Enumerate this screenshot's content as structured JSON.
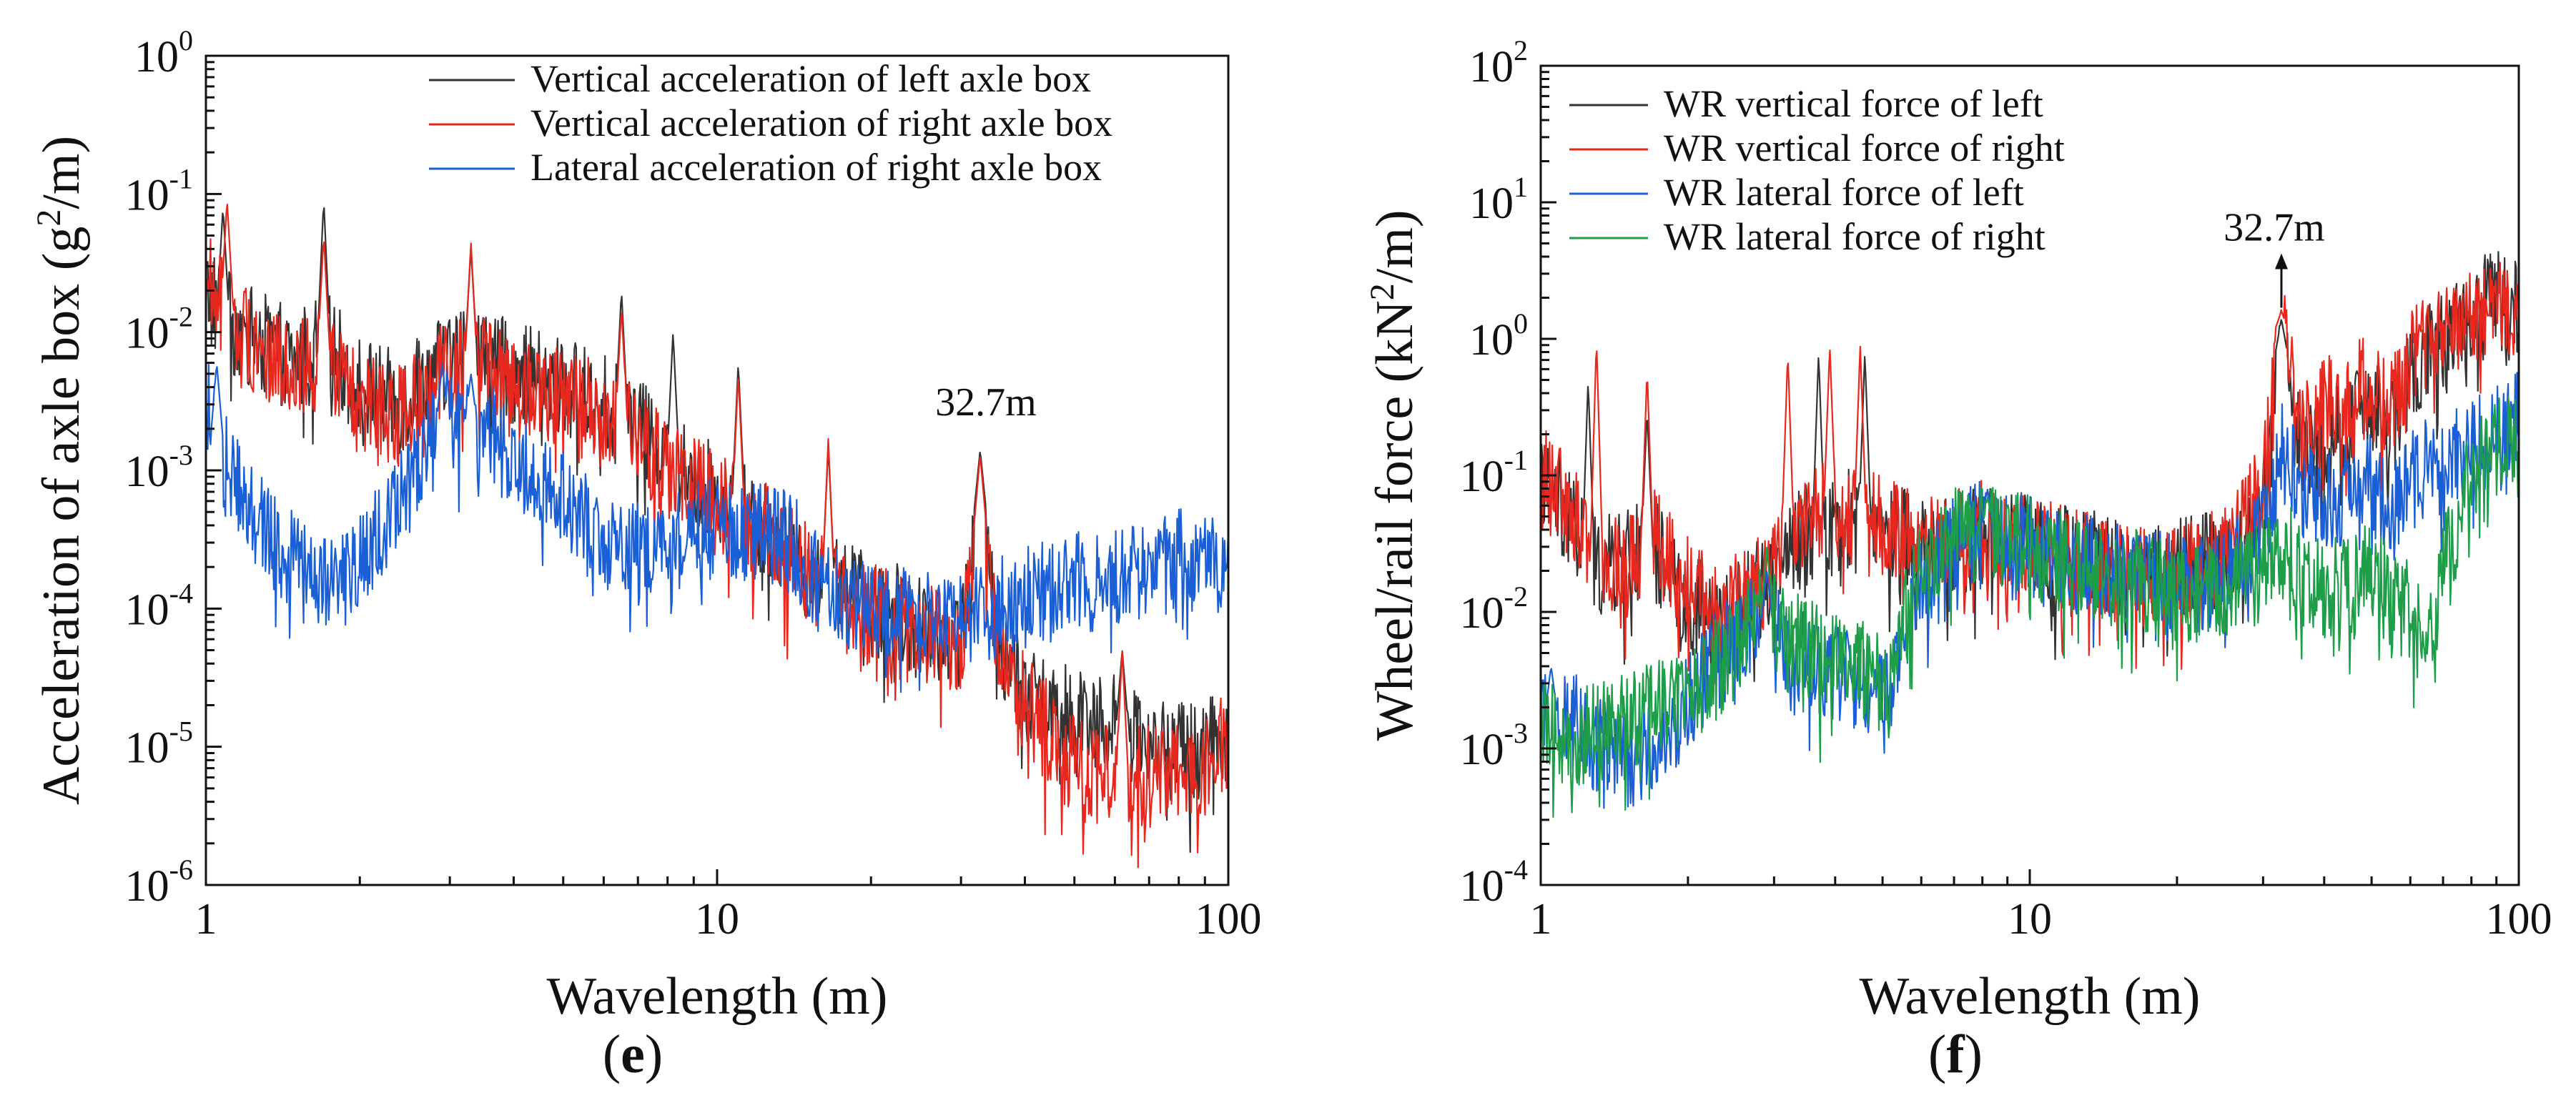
{
  "chart_data": [
    {
      "type": "line",
      "panel": "e",
      "panel_label": "e",
      "xlabel": "Wavelength (m)",
      "ylabel_pre": "Acceleration of axle box (g",
      "ylabel_sup": "2",
      "ylabel_post": "/m)",
      "xscale": "log",
      "yscale": "log",
      "xlim": [
        1,
        100
      ],
      "ylim": [
        1e-06,
        1
      ],
      "x_ticks": [
        {
          "label": "1"
        },
        {
          "label": "10"
        },
        {
          "label": "100"
        }
      ],
      "y_ticks": [
        {
          "base": "10",
          "exp": "0"
        },
        {
          "base": "10",
          "exp": "-1"
        },
        {
          "base": "10",
          "exp": "-2"
        },
        {
          "base": "10",
          "exp": "-3"
        },
        {
          "base": "10",
          "exp": "-4"
        },
        {
          "base": "10",
          "exp": "-5"
        },
        {
          "base": "10",
          "exp": "-6"
        }
      ],
      "legend_position": "top-right",
      "annotations": [
        {
          "text": "32.7m",
          "x": 32.7,
          "y": 0.0025
        }
      ],
      "series": [
        {
          "name": "Vertical acceleration of left axle box",
          "color": "#333333",
          "x": [
            1,
            1.1,
            1.3,
            1.5,
            1.7,
            2.0,
            2.4,
            2.9,
            3.3,
            4.0,
            5.0,
            6.0,
            7.0,
            8.0,
            9.5,
            11,
            13,
            15,
            17,
            20,
            25,
            30,
            32.7,
            36,
            40,
            45,
            50,
            60,
            70,
            80,
            90,
            100
          ],
          "values": [
            0.02,
            0.012,
            0.008,
            0.006,
            0.009,
            0.004,
            0.003,
            0.006,
            0.007,
            0.005,
            0.004,
            0.003,
            0.002,
            0.0012,
            0.0008,
            0.0006,
            0.00035,
            0.0002,
            0.00015,
            0.0001,
            8e-05,
            6e-05,
            0.0005,
            5e-05,
            2.5e-05,
            2e-05,
            1.8e-05,
            1.5e-05,
            1e-05,
            9e-06,
            1e-05,
            1.5e-05
          ],
          "peaks": [
            [
              1.08,
              0.08
            ],
            [
              1.7,
              0.09
            ],
            [
              3.3,
              0.04
            ],
            [
              6.5,
              0.02
            ],
            [
              8.2,
              0.01
            ],
            [
              11,
              0.006
            ],
            [
              16.5,
              0.0015
            ],
            [
              32.7,
              0.0014
            ],
            [
              62,
              5e-05
            ]
          ]
        },
        {
          "name": "Vertical acceleration of right axle box",
          "color": "#e8281e",
          "x": [
            1,
            1.1,
            1.3,
            1.5,
            1.7,
            2.0,
            2.4,
            2.9,
            3.3,
            4.0,
            5.0,
            6.0,
            7.0,
            8.0,
            9.5,
            11,
            13,
            15,
            17,
            20,
            25,
            30,
            32.7,
            36,
            40,
            45,
            50,
            60,
            70,
            80,
            90,
            100
          ],
          "values": [
            0.025,
            0.015,
            0.007,
            0.005,
            0.007,
            0.003,
            0.0025,
            0.005,
            0.006,
            0.004,
            0.0035,
            0.0025,
            0.0018,
            0.001,
            0.0007,
            0.0005,
            0.0003,
            0.00018,
            0.00013,
            9e-05,
            7e-05,
            5e-05,
            0.0004,
            4e-05,
            2e-05,
            1.2e-05,
            7e-06,
            6e-06,
            6e-06,
            6e-06,
            8e-06,
            1.2e-05
          ],
          "peaks": [
            [
              1.1,
              0.09
            ],
            [
              1.7,
              0.05
            ],
            [
              3.3,
              0.045
            ],
            [
              6.5,
              0.015
            ],
            [
              11,
              0.005
            ],
            [
              16.5,
              0.0017
            ],
            [
              32.7,
              0.0013
            ],
            [
              62,
              5e-05
            ]
          ]
        },
        {
          "name": "Lateral acceleration of right axle box",
          "color": "#1a5fd6",
          "x": [
            1,
            1.1,
            1.3,
            1.5,
            1.7,
            2.0,
            2.4,
            2.7,
            3.0,
            3.5,
            4.0,
            5.0,
            6.0,
            7.0,
            8.0,
            9.0,
            10,
            12,
            14,
            16,
            18,
            20,
            25,
            30,
            35,
            40,
            50,
            60,
            70,
            80,
            90,
            100
          ],
          "values": [
            0.003,
            0.001,
            0.0004,
            0.0002,
            0.00015,
            0.0002,
            0.0006,
            0.0015,
            0.0025,
            0.002,
            0.0012,
            0.0006,
            0.0003,
            0.00025,
            0.0003,
            0.00035,
            0.0004,
            0.00035,
            0.0003,
            0.00015,
            0.0001,
            9e-05,
            8e-05,
            9e-05,
            0.0001,
            0.00012,
            0.00015,
            0.00018,
            0.0002,
            0.00022,
            0.00025,
            0.0002
          ],
          "peaks": [
            [
              1.05,
              0.006
            ],
            [
              2.9,
              0.006
            ],
            [
              3.3,
              0.005
            ]
          ]
        }
      ]
    },
    {
      "type": "line",
      "panel": "f",
      "panel_label": "f",
      "xlabel": "Wavelength (m)",
      "ylabel_pre": "Wheel/rail force (kN",
      "ylabel_sup": "2",
      "ylabel_post": "/m)",
      "xscale": "log",
      "yscale": "log",
      "xlim": [
        1,
        100
      ],
      "ylim": [
        0.0001,
        100
      ],
      "x_ticks": [
        {
          "label": "1"
        },
        {
          "label": "10"
        },
        {
          "label": "100"
        }
      ],
      "y_ticks": [
        {
          "base": "10",
          "exp": "2"
        },
        {
          "base": "10",
          "exp": "1"
        },
        {
          "base": "10",
          "exp": "0"
        },
        {
          "base": "10",
          "exp": "-1"
        },
        {
          "base": "10",
          "exp": "-2"
        },
        {
          "base": "10",
          "exp": "-3"
        },
        {
          "base": "10",
          "exp": "-4"
        }
      ],
      "legend_position": "top-left",
      "annotations": [
        {
          "text": "32.7m",
          "x": 32.7,
          "y": 5,
          "arrow": true
        }
      ],
      "series": [
        {
          "name": "WR vertical force of left",
          "color": "#333333",
          "x": [
            1,
            1.1,
            1.3,
            1.5,
            1.7,
            2.0,
            2.4,
            2.8,
            3.2,
            3.8,
            4.5,
            5.5,
            6.5,
            8.0,
            10,
            12,
            15,
            18,
            22,
            26,
            30,
            32.7,
            36,
            40,
            45,
            50,
            55,
            60,
            70,
            80,
            90,
            100
          ],
          "values": [
            0.08,
            0.06,
            0.02,
            0.025,
            0.03,
            0.012,
            0.008,
            0.015,
            0.03,
            0.045,
            0.05,
            0.035,
            0.03,
            0.035,
            0.03,
            0.025,
            0.022,
            0.02,
            0.022,
            0.025,
            0.06,
            0.8,
            0.15,
            0.15,
            0.25,
            0.3,
            0.2,
            0.6,
            0.9,
            1.8,
            2.2,
            1.5
          ],
          "peaks": [
            [
              1.25,
              0.5
            ],
            [
              1.65,
              0.3
            ],
            [
              3.7,
              0.8
            ],
            [
              4.6,
              0.8
            ],
            [
              32.7,
              1.4
            ]
          ]
        },
        {
          "name": "WR vertical force of right",
          "color": "#e8281e",
          "x": [
            1,
            1.1,
            1.3,
            1.5,
            1.7,
            2.0,
            2.4,
            2.8,
            3.2,
            3.8,
            4.5,
            5.5,
            6.5,
            8.0,
            10,
            12,
            15,
            18,
            22,
            26,
            30,
            32.7,
            36,
            40,
            45,
            50,
            55,
            60,
            70,
            80,
            90,
            100
          ],
          "values": [
            0.1,
            0.07,
            0.03,
            0.02,
            0.035,
            0.015,
            0.009,
            0.02,
            0.04,
            0.06,
            0.05,
            0.04,
            0.03,
            0.04,
            0.03,
            0.025,
            0.02,
            0.018,
            0.02,
            0.03,
            0.08,
            1.2,
            0.2,
            0.3,
            0.4,
            0.5,
            0.3,
            0.7,
            1.0,
            1.5,
            2.0,
            1.6
          ],
          "peaks": [
            [
              1.3,
              1.0
            ],
            [
              1.65,
              0.6
            ],
            [
              3.2,
              0.8
            ],
            [
              3.9,
              0.9
            ],
            [
              4.5,
              0.9
            ],
            [
              32.7,
              1.6
            ]
          ]
        },
        {
          "name": "WR lateral force of left",
          "color": "#1a5fd6",
          "x": [
            1,
            1.2,
            1.5,
            1.8,
            2.1,
            2.5,
            2.8,
            3.2,
            3.8,
            4.5,
            5.0,
            5.5,
            6.0,
            7.0,
            8.0,
            10,
            12,
            15,
            18,
            22,
            26,
            30,
            32.7,
            36,
            40,
            45,
            50,
            55,
            60,
            70,
            80,
            90,
            100
          ],
          "values": [
            0.002,
            0.0015,
            0.0008,
            0.0012,
            0.003,
            0.006,
            0.01,
            0.005,
            0.004,
            0.003,
            0.002,
            0.006,
            0.015,
            0.03,
            0.04,
            0.03,
            0.025,
            0.02,
            0.018,
            0.015,
            0.02,
            0.04,
            0.15,
            0.08,
            0.06,
            0.08,
            0.09,
            0.05,
            0.1,
            0.12,
            0.15,
            0.2,
            0.3
          ],
          "peaks": [
            [
              1.05,
              0.004
            ],
            [
              2.9,
              0.02
            ],
            [
              8.2,
              0.08
            ]
          ]
        },
        {
          "name": "WR lateral force of right",
          "color": "#1f9e4a",
          "x": [
            1,
            1.2,
            1.5,
            1.8,
            2.1,
            2.5,
            2.8,
            3.2,
            3.8,
            4.5,
            5.0,
            5.5,
            6.0,
            7.0,
            8.0,
            10,
            12,
            15,
            18,
            22,
            26,
            30,
            32.7,
            36,
            40,
            45,
            50,
            55,
            60,
            65,
            70,
            80,
            90,
            100
          ],
          "values": [
            0.0015,
            0.0012,
            0.0015,
            0.002,
            0.003,
            0.005,
            0.012,
            0.006,
            0.005,
            0.004,
            0.003,
            0.008,
            0.02,
            0.035,
            0.04,
            0.03,
            0.022,
            0.018,
            0.016,
            0.013,
            0.015,
            0.02,
            0.03,
            0.02,
            0.015,
            0.015,
            0.02,
            0.012,
            0.01,
            0.005,
            0.02,
            0.1,
            0.15,
            0.2
          ],
          "peaks": [
            [
              2.9,
              0.03
            ],
            [
              8.2,
              0.07
            ]
          ]
        }
      ]
    }
  ]
}
